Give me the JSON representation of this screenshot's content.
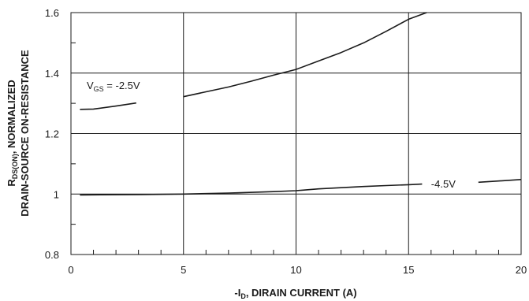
{
  "chart_data": {
    "type": "line",
    "title": "",
    "xlabel": {
      "prefix": "-I",
      "sub": "D",
      "suffix": ", DIRAIN CURRENT (A)"
    },
    "ylabel": {
      "line1": {
        "prefix": "R",
        "sub": "DS(ON)",
        "suffix": ", NORMALIZED"
      },
      "line2": "DRAIN-SOURCE ON-RESISTANCE"
    },
    "xlim": [
      0,
      20
    ],
    "ylim": [
      0.8,
      1.6
    ],
    "x_ticks": [
      0,
      5,
      10,
      15,
      20
    ],
    "x_tick_labels": [
      "0",
      "5",
      "10",
      "15",
      "20"
    ],
    "y_ticks": [
      0.8,
      1.0,
      1.2,
      1.4,
      1.6
    ],
    "y_tick_labels": [
      "0.8",
      "1",
      "1.2",
      "1.4",
      "1.6"
    ],
    "grid": {
      "major": true,
      "minor_ticks_inside": true
    },
    "series": [
      {
        "name": "VGS = -2.5V",
        "segments": [
          {
            "x": [
              0.4,
              1.0,
              2.0,
              2.9
            ],
            "y": [
              1.28,
              1.281,
              1.291,
              1.301
            ]
          },
          {
            "x": [
              5.0,
              6.0,
              7.0,
              8.0,
              9.0,
              10.0,
              11.0,
              12.0,
              13.0,
              14.0,
              15.0,
              15.8
            ],
            "y": [
              1.322,
              1.338,
              1.354,
              1.373,
              1.393,
              1.412,
              1.44,
              1.468,
              1.5,
              1.538,
              1.578,
              1.6
            ]
          }
        ]
      },
      {
        "name": "-4.5V",
        "segments": [
          {
            "x": [
              0.4,
              3,
              5,
              7,
              9,
              10,
              11,
              12,
              13,
              14,
              15,
              15.6
            ],
            "y": [
              0.997,
              0.998,
              1.0,
              1.003,
              1.008,
              1.011,
              1.017,
              1.021,
              1.025,
              1.028,
              1.031,
              1.033
            ]
          },
          {
            "x": [
              18.1,
              19,
              20
            ],
            "y": [
              1.039,
              1.043,
              1.048
            ]
          }
        ]
      }
    ],
    "annotations": {
      "vgs25": {
        "prefix": "V",
        "sub": "GS",
        "suffix": " = -2.5V",
        "x": 0.7,
        "y": 1.36
      },
      "vgs45": {
        "text": "-4.5V",
        "x": 16.0,
        "y": 1.035
      }
    },
    "line_color": "#1a1a1a",
    "grid_color": "#1a1a1a"
  }
}
